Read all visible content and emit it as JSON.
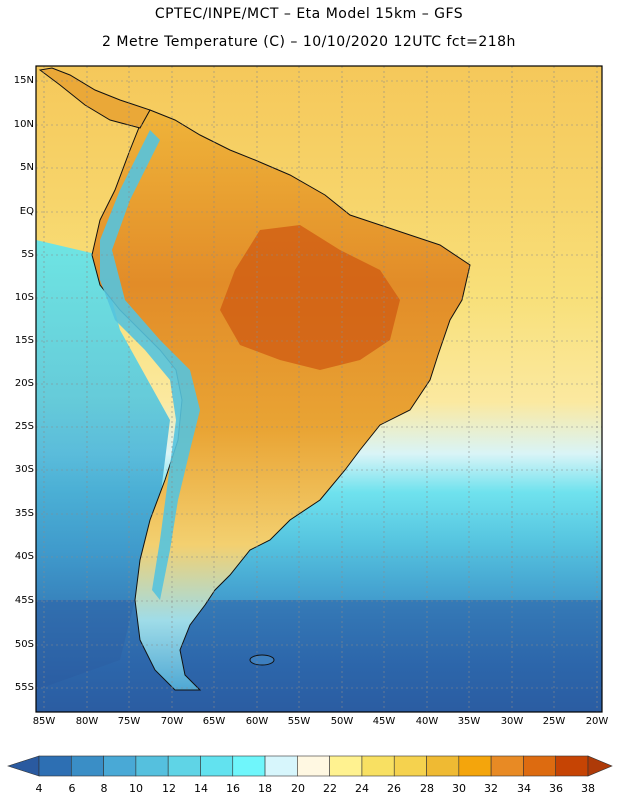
{
  "header": {
    "line1": "CPTEC/INPE/MCT –  Eta Model 15km – GFS",
    "line2": "2 Metre Temperature (C) – 10/10/2020 12UTC fct=218h"
  },
  "map": {
    "lat_labels": [
      "15N",
      "10N",
      "5N",
      "EQ",
      "5S",
      "10S",
      "15S",
      "20S",
      "25S",
      "30S",
      "35S",
      "40S",
      "45S",
      "50S",
      "55S"
    ],
    "lon_labels": [
      "85W",
      "80W",
      "75W",
      "70W",
      "65W",
      "60W",
      "55W",
      "50W",
      "45W",
      "40W",
      "35W",
      "30W",
      "25W",
      "20W"
    ]
  },
  "colorbar": {
    "labels": [
      "4",
      "6",
      "8",
      "10",
      "12",
      "14",
      "16",
      "18",
      "20",
      "22",
      "24",
      "26",
      "28",
      "30",
      "32",
      "34",
      "36",
      "38"
    ],
    "colors": [
      "#2a5aa0",
      "#2d6fb3",
      "#3a8ec6",
      "#49a9d6",
      "#55c0de",
      "#5fd4e6",
      "#62e2ef",
      "#6ff6fb",
      "#d7f6fc",
      "#fff8e2",
      "#fff290",
      "#f8e062",
      "#f5d24e",
      "#efba33",
      "#f4a50c",
      "#e88a24",
      "#dd6b10",
      "#c64404",
      "#ae3a08"
    ],
    "accent_map_ocean_north": "#f5c85a",
    "accent_map_land": "#e8a032"
  }
}
